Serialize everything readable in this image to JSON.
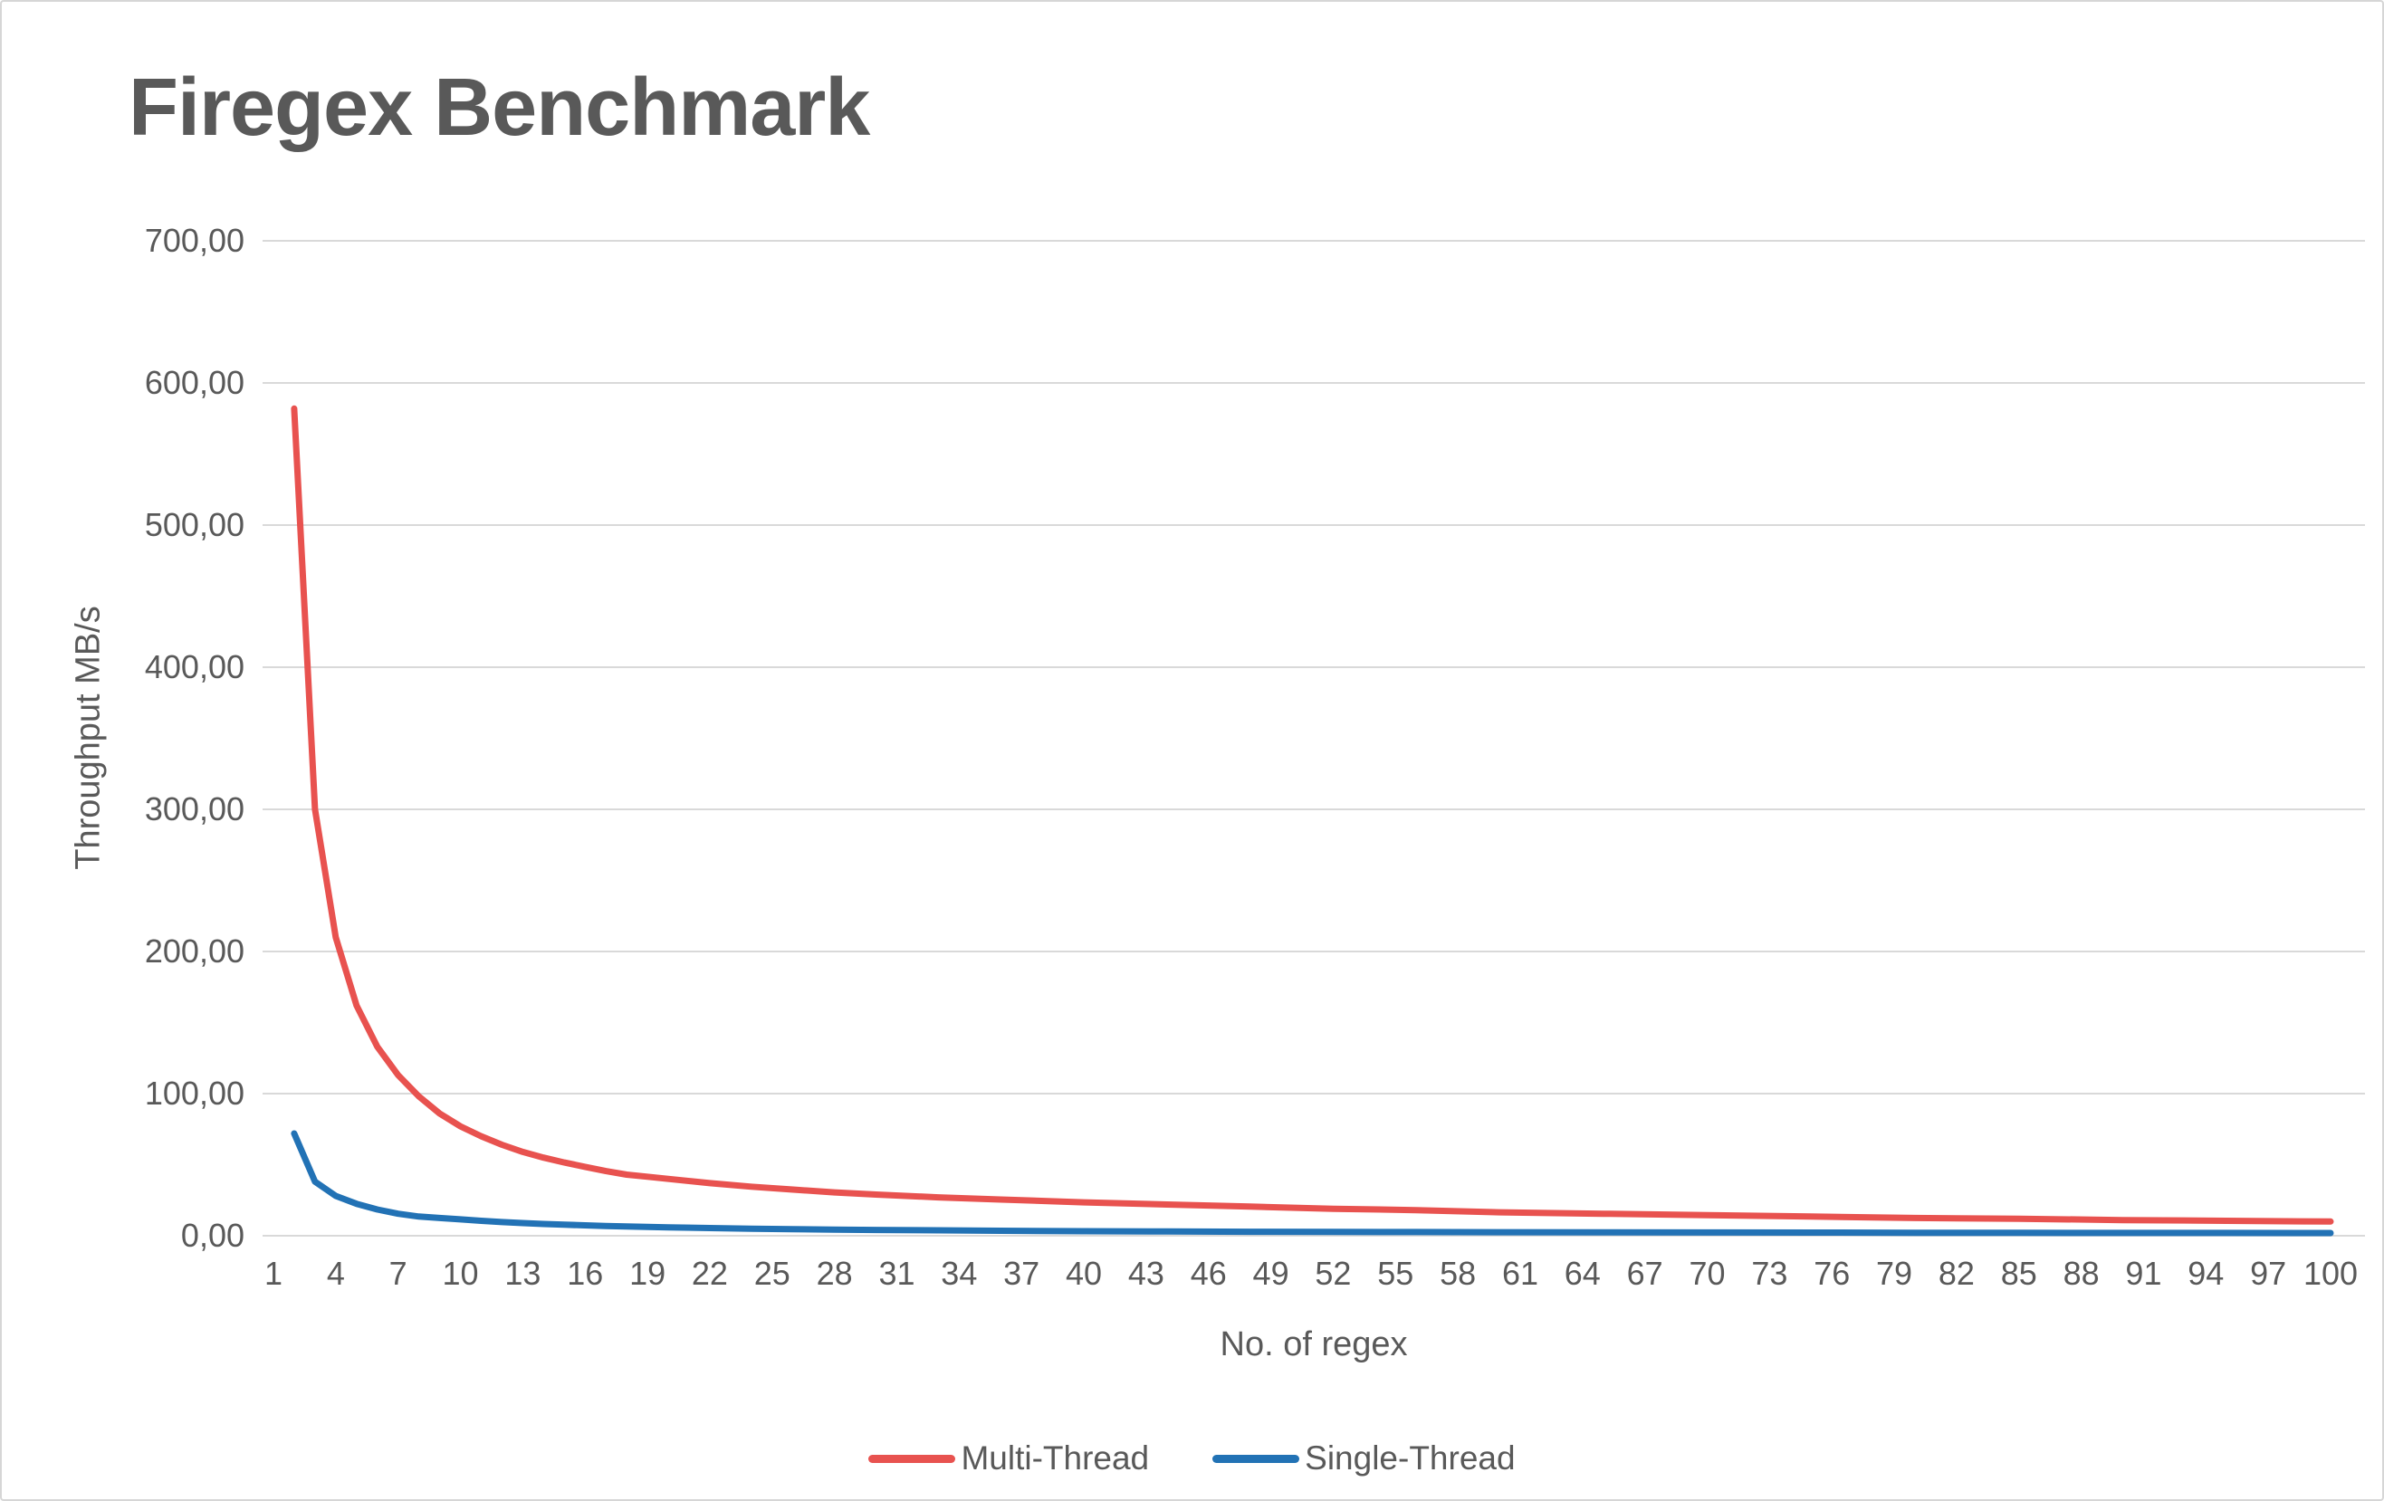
{
  "title": "Firegex Benchmark",
  "colors": {
    "text": "#595959",
    "grid": "#d9d9d9",
    "background": "#ffffff",
    "border": "#d6d6d6",
    "multi_thread": "#e8524f",
    "single_thread": "#2272b5"
  },
  "chart_data": {
    "type": "line",
    "title": "Firegex Benchmark",
    "xlabel": "No. of regex",
    "ylabel": "Throughput MB/s",
    "xlim": [
      1,
      100
    ],
    "ylim": [
      0,
      700
    ],
    "grid": "horizontal-only",
    "legend_position": "bottom-center",
    "y_ticks": [
      {
        "value": 0,
        "label": "0,00"
      },
      {
        "value": 100,
        "label": "100,00"
      },
      {
        "value": 200,
        "label": "200,00"
      },
      {
        "value": 300,
        "label": "300,00"
      },
      {
        "value": 400,
        "label": "400,00"
      },
      {
        "value": 500,
        "label": "500,00"
      },
      {
        "value": 600,
        "label": "600,00"
      },
      {
        "value": 700,
        "label": "700,00"
      }
    ],
    "x_ticks": [
      1,
      4,
      7,
      10,
      13,
      16,
      19,
      22,
      25,
      28,
      31,
      34,
      37,
      40,
      43,
      46,
      49,
      52,
      55,
      58,
      61,
      64,
      67,
      70,
      73,
      76,
      79,
      82,
      85,
      88,
      91,
      94,
      97,
      100
    ],
    "series": [
      {
        "name": "Multi-Thread",
        "color": "#e8524f",
        "points": [
          [
            2,
            582
          ],
          [
            3,
            300
          ],
          [
            4,
            210
          ],
          [
            5,
            162
          ],
          [
            6,
            133
          ],
          [
            7,
            113
          ],
          [
            8,
            98
          ],
          [
            9,
            86
          ],
          [
            10,
            77
          ],
          [
            11,
            70
          ],
          [
            12,
            64
          ],
          [
            13,
            59
          ],
          [
            14,
            55
          ],
          [
            15,
            51.5
          ],
          [
            16,
            48.5
          ],
          [
            17,
            45.5
          ],
          [
            18,
            43
          ],
          [
            19,
            41.5
          ],
          [
            20,
            40
          ],
          [
            22,
            37
          ],
          [
            24,
            34.5
          ],
          [
            26,
            32.5
          ],
          [
            28,
            30.5
          ],
          [
            30,
            29
          ],
          [
            33,
            27
          ],
          [
            36,
            25.5
          ],
          [
            40,
            23.5
          ],
          [
            44,
            22
          ],
          [
            48,
            20.5
          ],
          [
            52,
            19
          ],
          [
            56,
            18
          ],
          [
            60,
            16.5
          ],
          [
            65,
            15.5
          ],
          [
            70,
            14.5
          ],
          [
            75,
            13.5
          ],
          [
            80,
            12.5
          ],
          [
            85,
            12
          ],
          [
            90,
            11
          ],
          [
            95,
            10.5
          ],
          [
            100,
            10
          ]
        ]
      },
      {
        "name": "Single-Thread",
        "color": "#2272b5",
        "points": [
          [
            2,
            72
          ],
          [
            3,
            38
          ],
          [
            4,
            28
          ],
          [
            5,
            22.5
          ],
          [
            6,
            18.5
          ],
          [
            7,
            15.5
          ],
          [
            8,
            13.5
          ],
          [
            9,
            12.5
          ],
          [
            10,
            11.5
          ],
          [
            11,
            10.5
          ],
          [
            12,
            9.6
          ],
          [
            13,
            8.9
          ],
          [
            14,
            8.3
          ],
          [
            15,
            7.8
          ],
          [
            16,
            7.3
          ],
          [
            17,
            6.9
          ],
          [
            18,
            6.5
          ],
          [
            19,
            6.2
          ],
          [
            20,
            5.9
          ],
          [
            22,
            5.4
          ],
          [
            24,
            5
          ],
          [
            26,
            4.6
          ],
          [
            28,
            4.3
          ],
          [
            30,
            4.1
          ],
          [
            33,
            3.8
          ],
          [
            36,
            3.5
          ],
          [
            40,
            3.2
          ],
          [
            44,
            3
          ],
          [
            48,
            2.8
          ],
          [
            52,
            2.7
          ],
          [
            56,
            2.6
          ],
          [
            60,
            2.5
          ],
          [
            65,
            2.4
          ],
          [
            70,
            2.3
          ],
          [
            75,
            2.2
          ],
          [
            80,
            2.1
          ],
          [
            85,
            2.05
          ],
          [
            90,
            2
          ],
          [
            95,
            1.95
          ],
          [
            100,
            1.9
          ]
        ]
      }
    ]
  }
}
